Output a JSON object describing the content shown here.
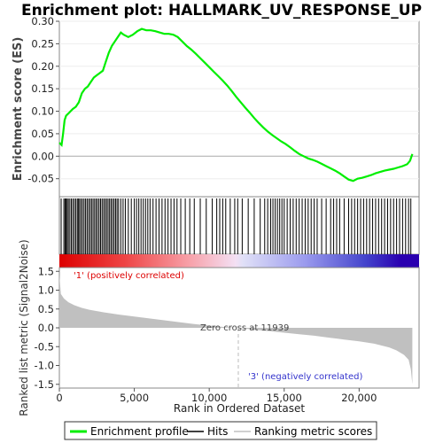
{
  "chart_data": {
    "type": "line",
    "title": "Enrichment plot: HALLMARK_UV_RESPONSE_UP",
    "top_panel": {
      "ylabel": "Enrichment score (ES)",
      "ylim": [
        -0.09,
        0.3
      ],
      "yticks": [
        "0.30",
        "0.25",
        "0.20",
        "0.15",
        "0.10",
        "0.05",
        "0.00",
        "-0.05"
      ],
      "series": [
        {
          "name": "Enrichment profile",
          "color": "#00ee00",
          "x": [
            0,
            150,
            250,
            350,
            450,
            600,
            750,
            900,
            1100,
            1300,
            1500,
            1700,
            1900,
            2100,
            2300,
            2500,
            2700,
            2900,
            3100,
            3300,
            3500,
            3700,
            3900,
            4100,
            4300,
            4600,
            4900,
            5200,
            5500,
            5800,
            6100,
            6400,
            6700,
            7000,
            7300,
            7600,
            7900,
            8200,
            8500,
            8800,
            9100,
            9400,
            9700,
            10000,
            10300,
            10600,
            10900,
            11200,
            11500,
            11800,
            12100,
            12400,
            12700,
            13000,
            13300,
            13600,
            13900,
            14200,
            14500,
            14800,
            15100,
            15400,
            15700,
            16000,
            16300,
            16600,
            16900,
            17200,
            17500,
            17800,
            18100,
            18400,
            18700,
            19000,
            19300,
            19600,
            19900,
            20200,
            20500,
            20800,
            21100,
            21400,
            21700,
            22000,
            22300,
            22600,
            22900,
            23200,
            23400,
            23550
          ],
          "y": [
            0.03,
            0.025,
            0.05,
            0.08,
            0.09,
            0.095,
            0.1,
            0.105,
            0.11,
            0.12,
            0.14,
            0.15,
            0.155,
            0.165,
            0.175,
            0.18,
            0.185,
            0.19,
            0.21,
            0.23,
            0.245,
            0.255,
            0.265,
            0.275,
            0.27,
            0.265,
            0.27,
            0.278,
            0.283,
            0.28,
            0.28,
            0.278,
            0.275,
            0.272,
            0.272,
            0.27,
            0.265,
            0.255,
            0.245,
            0.237,
            0.228,
            0.218,
            0.208,
            0.198,
            0.188,
            0.178,
            0.168,
            0.157,
            0.145,
            0.132,
            0.12,
            0.108,
            0.097,
            0.085,
            0.074,
            0.064,
            0.055,
            0.047,
            0.04,
            0.033,
            0.027,
            0.02,
            0.012,
            0.005,
            0.0,
            -0.005,
            -0.008,
            -0.012,
            -0.017,
            -0.022,
            -0.027,
            -0.032,
            -0.038,
            -0.045,
            -0.052,
            -0.055,
            -0.05,
            -0.048,
            -0.045,
            -0.042,
            -0.038,
            -0.035,
            -0.032,
            -0.03,
            -0.028,
            -0.025,
            -0.022,
            -0.018,
            -0.01,
            0.005
          ]
        }
      ]
    },
    "hits": {
      "name": "Hits",
      "x": [
        120,
        300,
        380,
        450,
        520,
        600,
        700,
        800,
        900,
        1000,
        1100,
        1200,
        1280,
        1350,
        1450,
        1550,
        1650,
        1750,
        1850,
        1950,
        2050,
        2150,
        2250,
        2350,
        2450,
        2550,
        2650,
        2750,
        2850,
        2950,
        3050,
        3150,
        3250,
        3350,
        3450,
        3550,
        3650,
        3750,
        3850,
        3950,
        4100,
        4250,
        4400,
        4600,
        4800,
        5000,
        5150,
        5300,
        5450,
        5600,
        5750,
        5900,
        6050,
        6250,
        6450,
        6650,
        6850,
        7050,
        7250,
        7450,
        7650,
        7850,
        8100,
        8400,
        8700,
        9000,
        9400,
        9800,
        10200,
        10500,
        10700,
        10900,
        11100,
        11400,
        11700,
        11900,
        12200,
        12600,
        13000,
        13400,
        13700,
        13900,
        14100,
        14250,
        14400,
        14550,
        14700,
        14850,
        15000,
        15200,
        15400,
        15600,
        15800,
        16000,
        16200,
        16400,
        16600,
        16800,
        17000,
        17200,
        17500,
        17800,
        18100,
        18300,
        18500,
        18700,
        19000,
        19300,
        19500,
        19700,
        19900,
        20100,
        20300,
        20500,
        20700,
        20900,
        21100,
        21300,
        21500,
        21700,
        21900,
        22100,
        22300,
        22500,
        22700,
        22900,
        23100,
        23300,
        23450
      ]
    },
    "bottom_panel": {
      "ylabel": "Ranked list metric (Signal2Noise)",
      "ylim": [
        -1.6,
        1.6
      ],
      "yticks": [
        "1.5",
        "1.0",
        "0.5",
        "0.0",
        "-0.5",
        "-1.0",
        "-1.5"
      ],
      "series": [
        {
          "name": "Ranking metric scores",
          "color": "#c0c0c0",
          "x": [
            0,
            100,
            300,
            600,
            1000,
            1500,
            2000,
            3000,
            4000,
            5000,
            6000,
            7000,
            8000,
            9000,
            10000,
            11000,
            11939,
            13000,
            14000,
            15000,
            16000,
            17000,
            18000,
            19000,
            20000,
            21000,
            22000,
            22500,
            23000,
            23300,
            23450,
            23550
          ],
          "y": [
            1.4,
            0.9,
            0.78,
            0.68,
            0.6,
            0.53,
            0.48,
            0.41,
            0.35,
            0.3,
            0.25,
            0.2,
            0.15,
            0.1,
            0.06,
            0.02,
            0.0,
            -0.05,
            -0.09,
            -0.13,
            -0.17,
            -0.21,
            -0.26,
            -0.31,
            -0.36,
            -0.42,
            -0.52,
            -0.6,
            -0.72,
            -0.85,
            -1.1,
            -1.5
          ]
        }
      ],
      "annotations": {
        "positive": "'1' (positively correlated)",
        "zero_cross": "Zero cross at 11939",
        "negative": "'3' (negatively correlated)"
      },
      "positive_color": "#dd0000",
      "negative_color": "#3333cc"
    },
    "x_axis": {
      "xlabel": "Rank in Ordered Dataset",
      "xlim": [
        0,
        24000
      ],
      "xticks": [
        0,
        5000,
        10000,
        15000,
        20000
      ],
      "xtick_labels": [
        "0",
        "5,000",
        "10,000",
        "15,000",
        "20,000"
      ]
    },
    "legend": {
      "placement": "bottom",
      "entries": [
        "Enrichment profile",
        "Hits",
        "Ranking metric scores"
      ]
    }
  }
}
